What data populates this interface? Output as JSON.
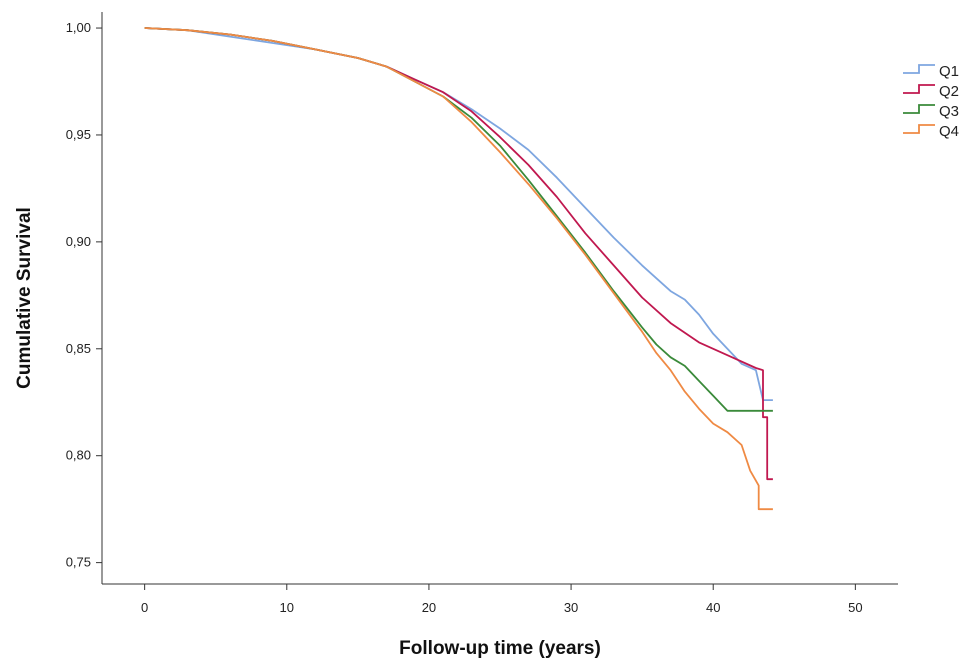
{
  "chart_data": {
    "type": "line",
    "title": "",
    "xlabel": "Follow-up time (years)",
    "ylabel": "Cumulative Survival",
    "xlim": [
      -3,
      53
    ],
    "ylim": [
      0.74,
      1.0075
    ],
    "xticks": [
      0,
      10,
      20,
      30,
      40,
      50
    ],
    "yticks": [
      1.0,
      0.95,
      0.9,
      0.85,
      0.8,
      0.75
    ],
    "xtick_labels": [
      "0",
      "10",
      "20",
      "30",
      "40",
      "50"
    ],
    "ytick_labels": [
      "1,00",
      "0,95",
      "0,90",
      "0,85",
      "0,80",
      "0,75"
    ],
    "grid": false,
    "legend": "top-right",
    "series": [
      {
        "name": "Q1",
        "color": "#7ea6e0",
        "step_end": true,
        "x": [
          0,
          3,
          6,
          9,
          12,
          15,
          17,
          19,
          21,
          23,
          25,
          27,
          29,
          31,
          33,
          35,
          37,
          38,
          39,
          40,
          41,
          42,
          43,
          43.5,
          44.2
        ],
        "y": [
          1.0,
          0.999,
          0.996,
          0.993,
          0.99,
          0.986,
          0.982,
          0.976,
          0.97,
          0.962,
          0.953,
          0.943,
          0.93,
          0.916,
          0.902,
          0.889,
          0.877,
          0.873,
          0.866,
          0.857,
          0.85,
          0.843,
          0.84,
          0.826,
          0.826
        ]
      },
      {
        "name": "Q2",
        "color": "#c0184f",
        "step_end": true,
        "x": [
          0,
          3,
          6,
          9,
          12,
          15,
          17,
          19,
          21,
          23,
          25,
          27,
          29,
          31,
          33,
          35,
          37,
          39,
          41,
          43,
          43.5,
          43.5,
          43.8,
          43.8,
          44.2
        ],
        "y": [
          1.0,
          0.999,
          0.997,
          0.994,
          0.99,
          0.986,
          0.982,
          0.976,
          0.97,
          0.961,
          0.949,
          0.936,
          0.921,
          0.904,
          0.889,
          0.874,
          0.862,
          0.853,
          0.847,
          0.841,
          0.84,
          0.818,
          0.818,
          0.789,
          0.789
        ]
      },
      {
        "name": "Q3",
        "color": "#3a8a3a",
        "step_end": true,
        "x": [
          0,
          3,
          6,
          9,
          12,
          15,
          17,
          19,
          21,
          23,
          25,
          27,
          29,
          31,
          33,
          35,
          36,
          37,
          38,
          39,
          40,
          41,
          44.2
        ],
        "y": [
          1.0,
          0.999,
          0.997,
          0.994,
          0.99,
          0.986,
          0.982,
          0.975,
          0.968,
          0.958,
          0.945,
          0.929,
          0.912,
          0.895,
          0.877,
          0.86,
          0.852,
          0.846,
          0.842,
          0.835,
          0.828,
          0.821,
          0.821
        ]
      },
      {
        "name": "Q4",
        "color": "#ef8a44",
        "step_end": true,
        "x": [
          0,
          3,
          6,
          9,
          12,
          15,
          17,
          19,
          21,
          23,
          25,
          27,
          29,
          31,
          33,
          35,
          36,
          37,
          38,
          39,
          40,
          41,
          42,
          42.6,
          43.2,
          43.2,
          44.2
        ],
        "y": [
          1.0,
          0.999,
          0.997,
          0.994,
          0.99,
          0.986,
          0.982,
          0.975,
          0.968,
          0.956,
          0.942,
          0.927,
          0.911,
          0.894,
          0.876,
          0.858,
          0.848,
          0.84,
          0.83,
          0.822,
          0.815,
          0.811,
          0.805,
          0.793,
          0.786,
          0.775,
          0.775
        ]
      }
    ]
  }
}
